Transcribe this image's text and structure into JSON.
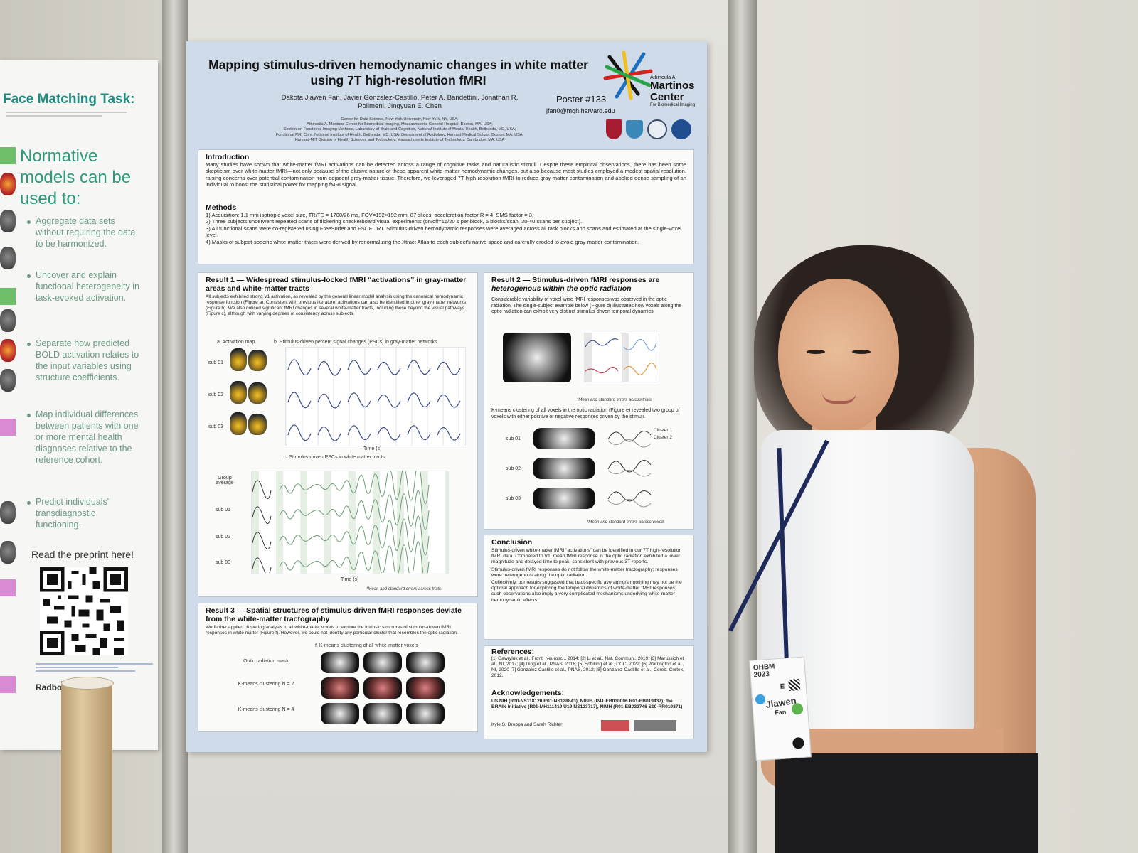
{
  "left_poster": {
    "title": "Face Matching Task:",
    "heading": "Normative models can be used to:",
    "bullets": [
      "Aggregate data sets without requiring the data to be harmonized.",
      "Uncover and explain functional heterogeneity in task-evoked activation.",
      "Separate how predicted BOLD activation relates to the input variables using structure coefficients.",
      "Map individual differences between patients with one or more mental health diagnoses relative to the reference cohort.",
      "Predict individuals' transdiagnostic functioning."
    ],
    "preprint": "Read the preprint here!",
    "footer_name": "Radboud"
  },
  "poster": {
    "title_line1": "Mapping stimulus-driven hemodynamic changes in white matter",
    "title_line2": "using 7T high-resolution fMRI",
    "authors_line1": "Dakota Jiawen Fan, Javier Gonzalez-Castillo, Peter A. Bandettini, Jonathan R.",
    "authors_line2": "Polimeni, Jingyuan E. Chen",
    "affiliations": [
      "Center for Data Science, New York University, New York, NY, USA;",
      "Athinoula A. Martinos Center for Biomedical Imaging, Massachusetts General Hospital, Boston, MA, USA;",
      "Section on Functional Imaging Methods, Laboratory of Brain and Cognition, National Institute of Mental Health, Bethesda, MD, USA;",
      "Functional MRI Core, National Institute of Health, Bethesda, MD, USA; Department of Radiology, Harvard Medical School, Boston, MA, USA;",
      "Harvard-MIT Division of Health Sciences and Technology, Massachusetts Institute of Technology, Cambridge, MA, USA"
    ],
    "poster_number": "Poster #133",
    "email": "jfan0@mgh.harvard.edu",
    "logo_line1": "Athinoula A.",
    "logo_line2": "Martinos",
    "logo_line3": "Center",
    "logo_line4": "For Biomedical Imaging",
    "intro_title": "Introduction",
    "intro_text": "Many studies have shown that white-matter fMRI activations can be detected across a range of cognitive tasks and naturalistic stimuli. Despite these empirical observations, there has been some skepticism over white-matter fMRI—not only because of the elusive nature of these apparent white-matter hemodynamic changes, but also because most studies employed a modest spatial resolution, raising concerns over potential contamination from adjacent gray-matter tissue. Therefore, we leveraged 7T high-resolution fMRI to reduce gray-matter contamination and applied dense sampling of an individual to boost the statistical power for mapping fMRI signal.",
    "methods_title": "Methods",
    "methods_items": [
      "1) Acquisition: 1.1 mm isotropic voxel size, TR/TE = 1700/26 ms, FOV=192×192 mm, 87 slices, acceleration factor R = 4, SMS factor = 3.",
      "2) Three subjects underwent repeated scans of flickering checkerboard visual experiments (on/off=16/20 s per block, 5 blocks/scan, 30-40 scans per subject).",
      "3) All functional scans were co-registered using FreeSurfer and FSL FLIRT. Stimulus-driven hemodynamic responses were averaged across all task blocks and scans and estimated at the single-voxel level.",
      "4) Masks of subject-specific white-matter tracts were derived by renormalizing the Xtract Atlas to each subject's native space and carefully eroded to avoid gray-matter contamination."
    ],
    "r1_title": "Result 1 — Widespread stimulus-locked fMRI “activations” in gray-matter areas and white-matter tracts",
    "r1_text": "All subjects exhibited strong V1 activation, as revealed by the general linear model analysis using the canonical hemodynamic response function (Figure a). Consistent with previous literature, activations can also be identified in other gray-matter networks (Figure b). We also noticed significant fMRI changes in several white-matter tracts, including those beyond the visual pathways (Figure c), although with varying degrees of consistency across subjects.",
    "r1_fig_a": "a.  Activation map",
    "r1_fig_b": "b.  Stimulus-driven percent signal changes (PSCs) in gray-matter networks",
    "r1_fig_c": "c.  Stimulus-driven PSCs in white matter tracts",
    "r1_subs": [
      "sub 01",
      "sub 02",
      "sub 03"
    ],
    "r1_rows_c": [
      "Group average",
      "sub 01",
      "sub 02",
      "sub 03"
    ],
    "r1_time": "Time (s)",
    "r1_note": "*Mean and standard errors across trials",
    "r2_title1": "Result 2 — Stimulus-driven fMRI responses are",
    "r2_title2": "heterogenous within the optic radiation",
    "r2_text": "Considerable variability of voxel-wise fMRI responses was observed in the optic radiation. The single-subject example below (Figure d) illustrates how voxels along the optic radiation can exhibit very distinct stimulus-driven temporal dynamics.",
    "r2_note1": "*Mean and standard errors across trials",
    "r2_text2": "K-means clustering of all voxels in the optic radiation (Figure e) revealed two group of voxels with either positive or negative responses driven by the stimuli.",
    "r2_legend": [
      "Cluster 1",
      "Cluster 2"
    ],
    "r2_subs": [
      "sub 01",
      "sub 02",
      "sub 03"
    ],
    "r2_note2": "*Mean and standard errors across voxels",
    "concl_title": "Conclusion",
    "concl_items": [
      "Stimulus-driven white-matter fMRI “activations” can be identified in our 7T high-resolution fMRI data. Compared to V1, mean fMRI response in the optic radiation exhibited a lower magnitude and delayed time to peak, consistent with previous 3T reports.",
      "Stimulus-driven fMRI responses do not follow the white-matter tractography; responses were heterogenous along the optic radiation.",
      "Collectively, our results suggested that tract-specific averaging/smoothing may not be the optimal approach for exploring the temporal dynamics of white-matter fMRI responses; such observations also imply a very complicated mechanisms underlying white-matter hemodynamic effects."
    ],
    "r3_title": "Result 3 — Spatial structures of stimulus-driven fMRI responses deviate from the white-matter tractography",
    "r3_text": "We further applied clustering analysis to all white-matter voxels to explore the intrinsic structures of stimulus-driven fMRI responses in white matter (Figure f). However, we could not identify any particular cluster that resembles the optic radiation.",
    "r3_fig": "f.  K-means clustering of all white-matter voxels",
    "r3_rows": [
      "Optic radiation mask",
      "K-means clustering N = 2",
      "K-means clustering N = 4"
    ],
    "refs_title": "References:",
    "refs_text": "[1] Gawryluk et al., Front. Neurosci., 2014; [2] Li et al., Nat. Commun., 2019; [3] Marussich et al., NI, 2017; [4] Ding et al., PNAS, 2018; [5] Schilling et al., CCC, 2022; [6] Warrington et al., NI, 2020 [7] Gonzalez-Castillo et al., PNAS, 2012; [8] Gonzalez-Castillo et al., Cereb. Cortex, 2012.",
    "ack_title": "Acknowledgements:",
    "ack_text": "US NIH (R00-NS118120 R01-NS128843), NIBIB (P41-EB030006 R01-EB019437), the BRAIN Initiative (R01-MH111419 U19-NS123717), NIMH (R01-EB032746 S10-RR019371)",
    "ack_names": "Kyle S. Droppa and Sarah Richter"
  },
  "badge": {
    "event": "OHBM 2023",
    "letter": "E",
    "first_name": "Jiawen",
    "last_name": "Fan"
  }
}
